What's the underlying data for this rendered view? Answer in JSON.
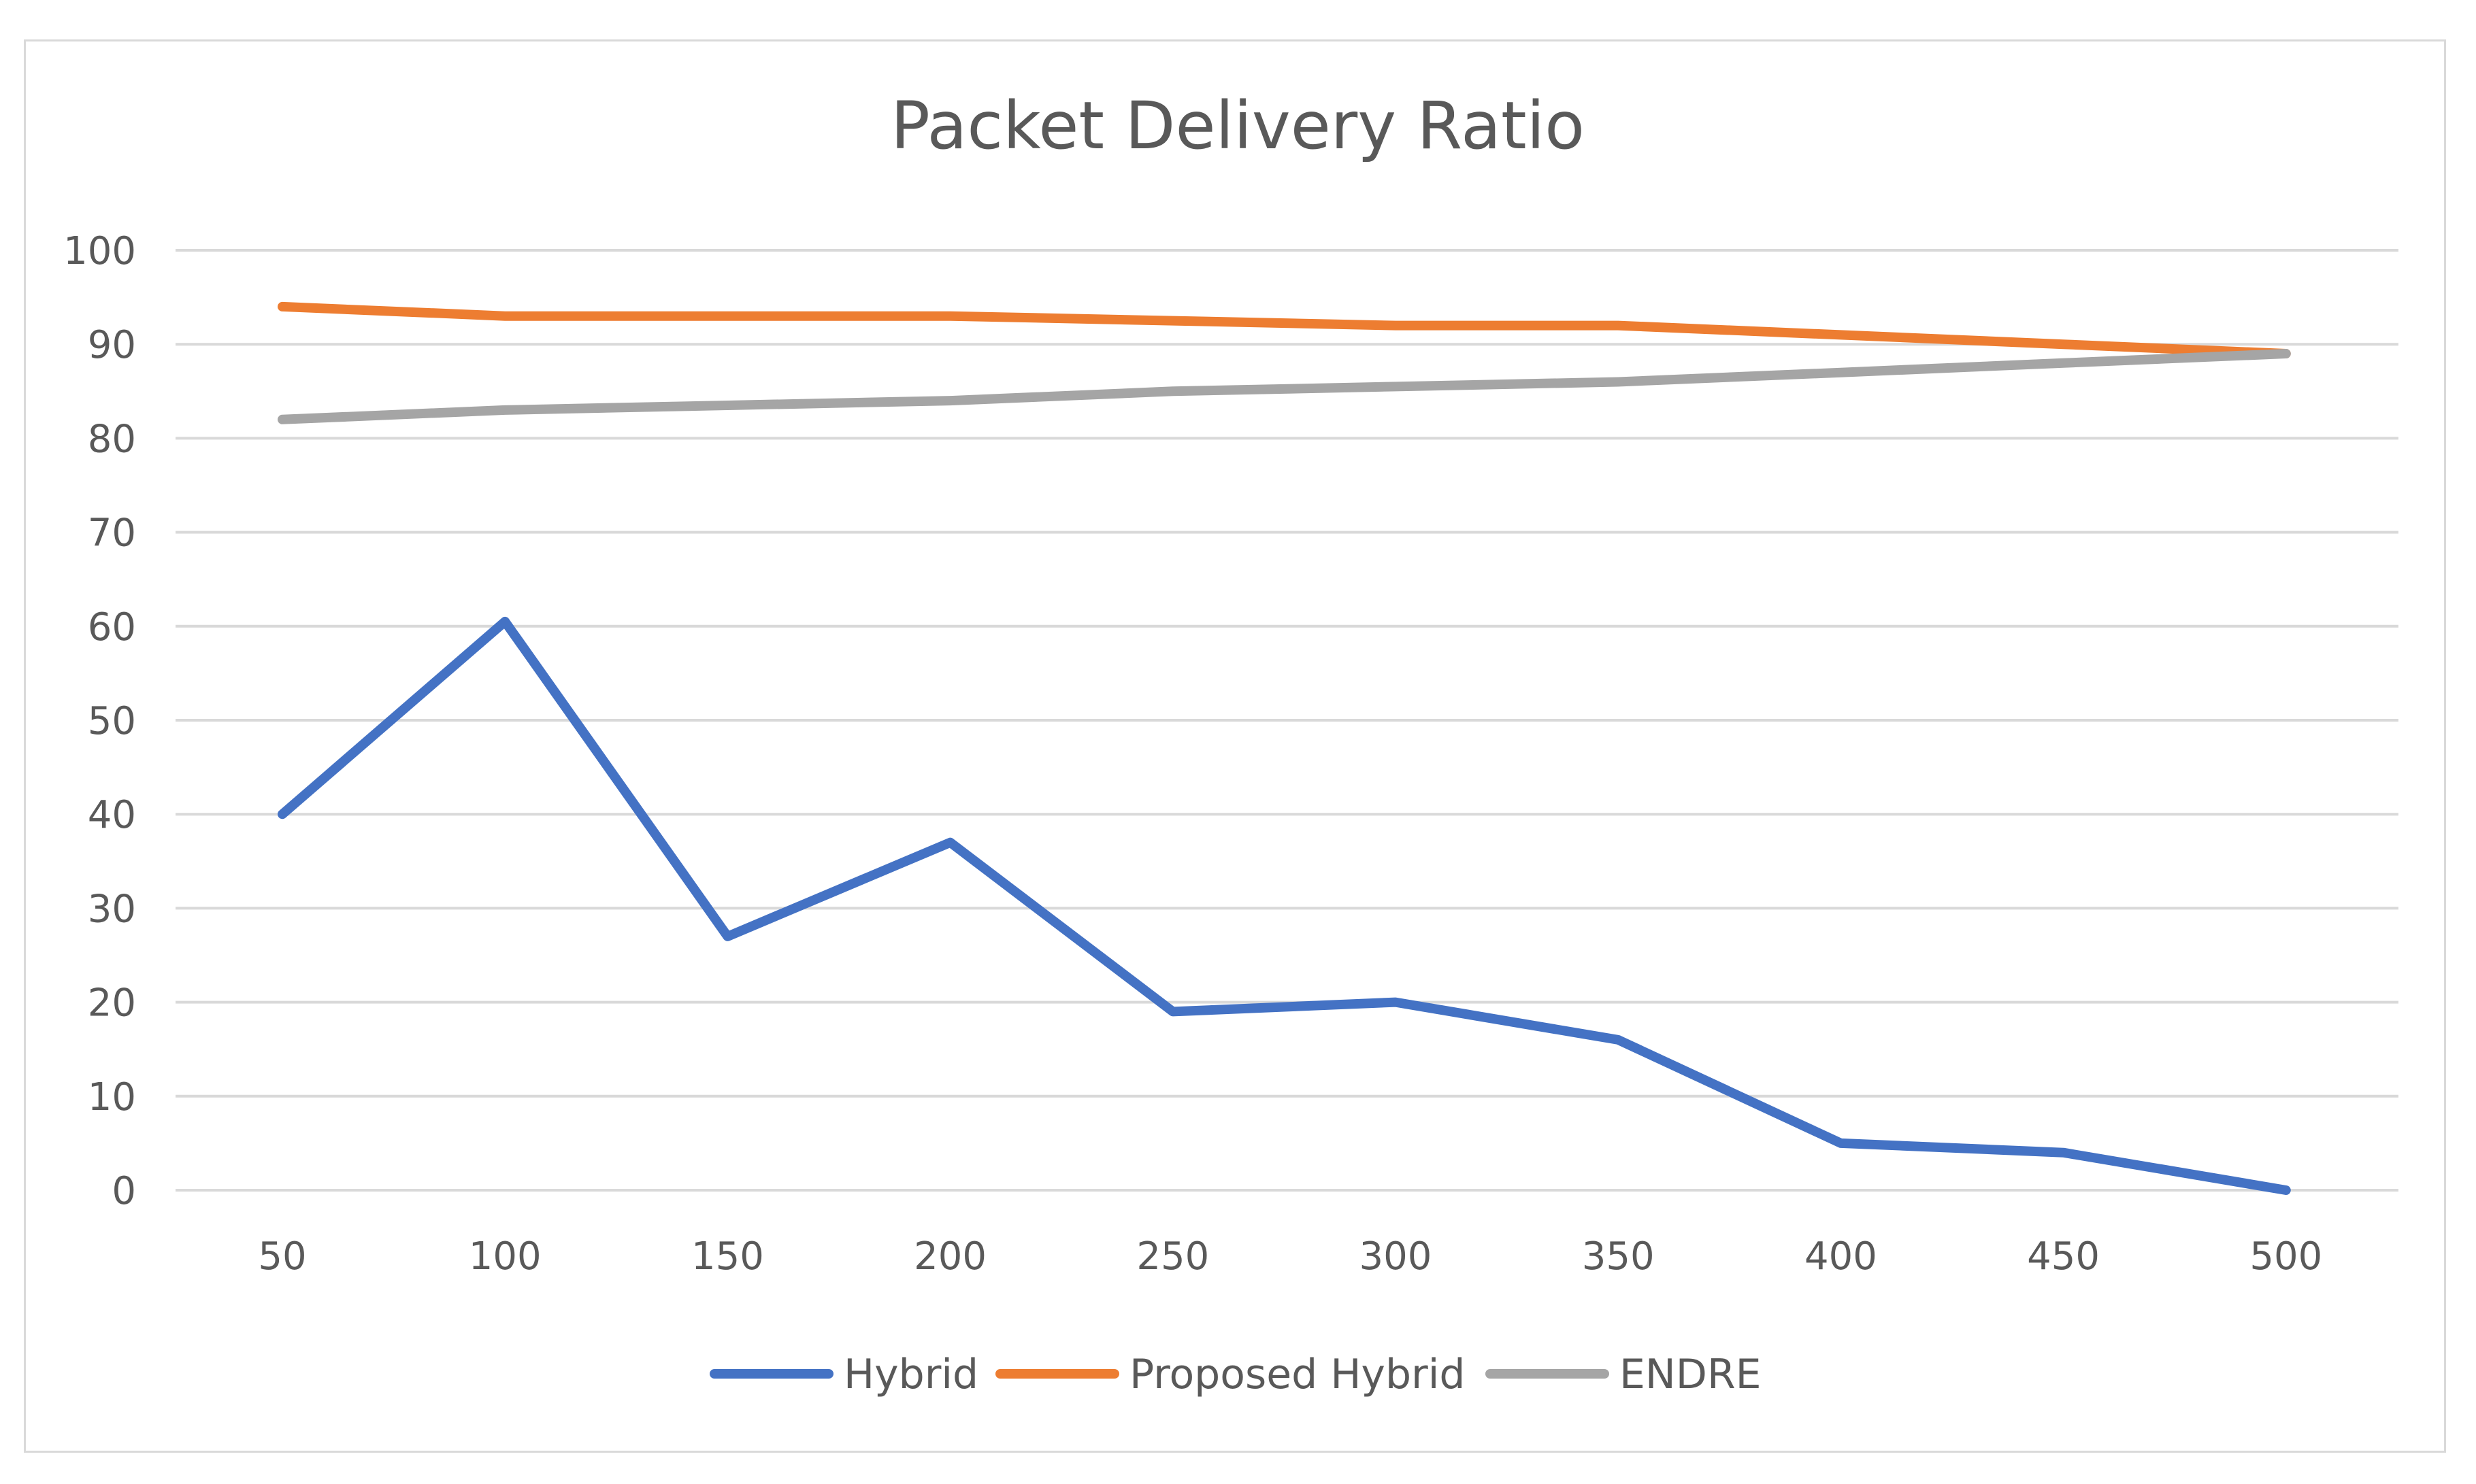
{
  "chart_data": {
    "type": "line",
    "title": "Packet Delivery Ratio",
    "xlabel": "",
    "ylabel": "",
    "categories": [
      "50",
      "100",
      "150",
      "200",
      "250",
      "300",
      "350",
      "400",
      "450",
      "500"
    ],
    "ylim": [
      0,
      100
    ],
    "yticks": [
      "0",
      "10",
      "20",
      "30",
      "40",
      "50",
      "60",
      "70",
      "80",
      "90",
      "100"
    ],
    "grid": true,
    "legend_position": "bottom",
    "series": [
      {
        "name": "Hybrid",
        "color": "#4472c4",
        "values": [
          40,
          60.5,
          27,
          37,
          19,
          20,
          16,
          5,
          4,
          0
        ]
      },
      {
        "name": "Proposed Hybrid",
        "color": "#ed7d31",
        "values": [
          94,
          93,
          93,
          93,
          92.5,
          92,
          92,
          91,
          90,
          89
        ]
      },
      {
        "name": "ENDRE",
        "color": "#a5a5a5",
        "values": [
          82,
          83,
          83.5,
          84,
          85,
          85.5,
          86,
          87,
          88,
          89
        ]
      }
    ]
  }
}
